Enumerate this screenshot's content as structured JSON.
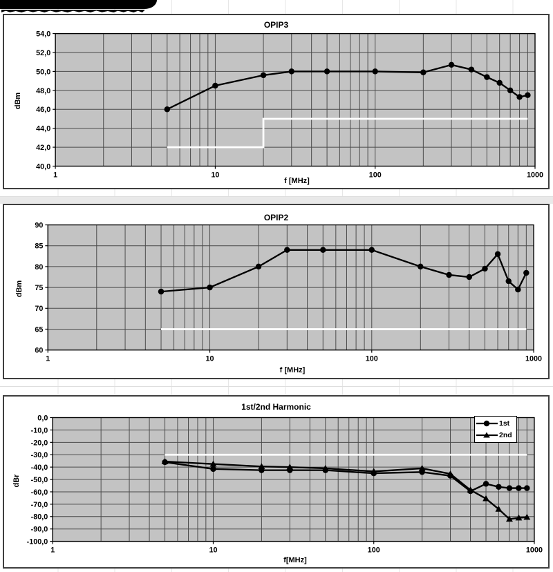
{
  "chart_data": [
    {
      "type": "line",
      "title": "OPIP3",
      "ylabel": "dBm",
      "xlabel": "f [MHz]",
      "xscale": "log",
      "xmin": 1,
      "xmax": 1000,
      "ymin": 40,
      "ymax": 54,
      "grid": true,
      "plot_bg": "#c3c3c3",
      "grid_color": "#4a4a4a",
      "xtick_values": [
        1,
        10,
        100,
        1000
      ],
      "xtick_labels": [
        "1",
        "10",
        "100",
        "1000"
      ],
      "ytick_values": [
        54,
        52,
        50,
        48,
        46,
        44,
        42,
        40
      ],
      "ytick_labels": [
        "54,0",
        "52,0",
        "50,0",
        "48,0",
        "46,0",
        "44,0",
        "42,0",
        "40,0"
      ],
      "x": [
        5,
        10,
        20,
        30,
        50,
        100,
        200,
        300,
        400,
        500,
        600,
        700,
        800,
        900
      ],
      "series": [
        {
          "name": "OPIP3",
          "marker": "circle",
          "color": "#000000",
          "values": [
            46.0,
            48.5,
            49.6,
            50.0,
            50.0,
            50.0,
            49.9,
            50.7,
            50.2,
            49.4,
            48.8,
            48.0,
            47.3,
            47.5
          ]
        }
      ],
      "limit_line": {
        "color": "#ffffff",
        "points": [
          [
            5,
            42
          ],
          [
            20,
            42
          ],
          [
            20,
            45
          ],
          [
            900,
            45
          ]
        ]
      }
    },
    {
      "type": "line",
      "title": "OPIP2",
      "ylabel": "dBm",
      "xlabel": "f [MHz]",
      "xscale": "log",
      "xmin": 1,
      "xmax": 1000,
      "ymin": 60,
      "ymax": 90,
      "grid": true,
      "plot_bg": "#c3c3c3",
      "grid_color": "#4a4a4a",
      "xtick_values": [
        1,
        10,
        100,
        1000
      ],
      "xtick_labels": [
        "1",
        "10",
        "100",
        "1000"
      ],
      "ytick_values": [
        90,
        85,
        80,
        75,
        70,
        65,
        60
      ],
      "ytick_labels": [
        "90",
        "85",
        "80",
        "75",
        "70",
        "65",
        "60"
      ],
      "x": [
        5,
        10,
        20,
        30,
        50,
        100,
        200,
        300,
        400,
        500,
        600,
        700,
        800,
        900
      ],
      "series": [
        {
          "name": "OPIP2",
          "marker": "circle",
          "color": "#000000",
          "values": [
            74,
            75,
            80,
            84,
            84,
            84,
            80,
            78,
            77.5,
            79.5,
            83,
            76.5,
            74.5,
            78.5
          ]
        }
      ],
      "limit_line": {
        "color": "#ffffff",
        "points": [
          [
            5,
            65
          ],
          [
            900,
            65
          ]
        ]
      }
    },
    {
      "type": "line",
      "title": "1st/2nd  Harmonic",
      "ylabel": "dBr",
      "xlabel": "f[MHz]",
      "xscale": "log",
      "xmin": 1,
      "xmax": 1000,
      "ymin": -100,
      "ymax": 0,
      "grid": true,
      "plot_bg": "#c3c3c3",
      "grid_color": "#4a4a4a",
      "legend_position": "top-right",
      "xtick_values": [
        1,
        10,
        100,
        1000
      ],
      "xtick_labels": [
        "1",
        "10",
        "100",
        "1000"
      ],
      "ytick_values": [
        0,
        -10,
        -20,
        -30,
        -40,
        -50,
        -60,
        -70,
        -80,
        -90,
        -100
      ],
      "ytick_labels": [
        "0,0",
        "-10,0",
        "-20,0",
        "-30,0",
        "-40,0",
        "-50,0",
        "-60,0",
        "-70,0",
        "-80,0",
        "-90,0",
        "-100,0"
      ],
      "x": [
        5,
        10,
        20,
        30,
        50,
        100,
        200,
        300,
        400,
        500,
        600,
        700,
        800,
        900
      ],
      "series": [
        {
          "name": "1st",
          "marker": "circle",
          "color": "#000000",
          "values": [
            -36,
            -41.5,
            -42.5,
            -42.5,
            -42.5,
            -45,
            -44,
            -47,
            -59.5,
            -53.5,
            -56,
            -57,
            -57,
            -57
          ]
        },
        {
          "name": "2nd",
          "marker": "triangle",
          "color": "#000000",
          "values": [
            -35.5,
            -37.5,
            -39.5,
            -40,
            -41,
            -43.5,
            -41,
            -45.5,
            -58.5,
            -65.5,
            -74,
            -82,
            -81,
            -80.5
          ]
        }
      ],
      "limit_line": {
        "color": "#ffffff",
        "points": [
          [
            5,
            -30
          ],
          [
            900,
            -30
          ]
        ]
      }
    }
  ]
}
